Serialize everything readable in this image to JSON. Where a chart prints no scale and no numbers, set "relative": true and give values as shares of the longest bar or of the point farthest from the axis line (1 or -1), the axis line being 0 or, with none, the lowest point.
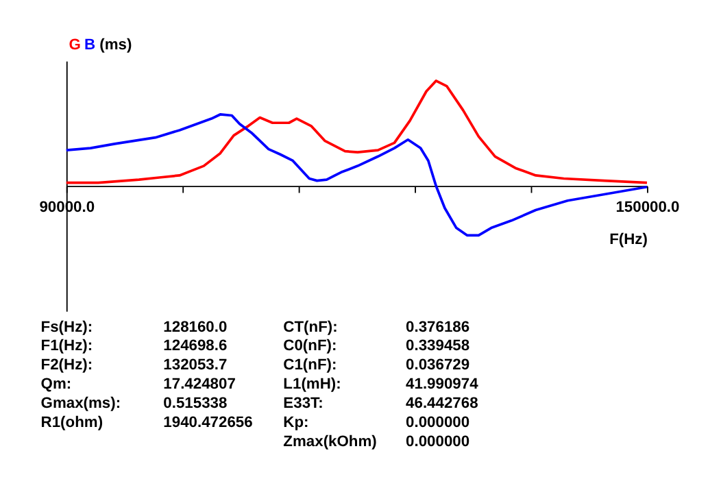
{
  "chart_data": {
    "type": "line",
    "relative": true,
    "ylabel": "(ms)",
    "xlabel": "F(Hz)",
    "xlim": [
      90000,
      150000
    ],
    "xticks": [
      {
        "value": 90000,
        "label": "90000.0"
      },
      {
        "value": 102000,
        "label": null
      },
      {
        "value": 114000,
        "label": null
      },
      {
        "value": 126000,
        "label": null
      },
      {
        "value": 138000,
        "label": null
      },
      {
        "value": 150000,
        "label": "150000.0"
      }
    ],
    "grid": false,
    "marker": "none",
    "line_style": "solid",
    "series": [
      {
        "name": "G",
        "color": "#ff0000",
        "x": [
          90000,
          93300,
          97500,
          99600,
          101700,
          104200,
          105900,
          107300,
          108800,
          110000,
          111300,
          113000,
          113800,
          115300,
          116700,
          118800,
          120100,
          122200,
          123900,
          125500,
          127200,
          128200,
          129300,
          131000,
          132600,
          134300,
          136400,
          138500,
          141400,
          145600,
          150000
        ],
        "values": [
          0.03,
          0.03,
          0.06,
          0.08,
          0.1,
          0.19,
          0.31,
          0.48,
          0.57,
          0.65,
          0.6,
          0.6,
          0.64,
          0.57,
          0.43,
          0.33,
          0.32,
          0.34,
          0.41,
          0.62,
          0.9,
          1.0,
          0.95,
          0.72,
          0.47,
          0.28,
          0.17,
          0.1,
          0.07,
          0.05,
          0.03
        ]
      },
      {
        "name": "B",
        "color": "#0000ff",
        "x": [
          90000,
          92500,
          95000,
          99200,
          101700,
          105000,
          105900,
          107100,
          107900,
          109200,
          110900,
          112100,
          113400,
          115100,
          115900,
          116900,
          118400,
          120100,
          122200,
          123900,
          125300,
          126600,
          127400,
          128200,
          129100,
          130300,
          131400,
          132600,
          133900,
          136000,
          138500,
          141800,
          145600,
          150000
        ],
        "values": [
          0.34,
          0.36,
          0.4,
          0.46,
          0.53,
          0.64,
          0.68,
          0.67,
          0.59,
          0.5,
          0.35,
          0.3,
          0.24,
          0.07,
          0.05,
          0.06,
          0.13,
          0.19,
          0.28,
          0.36,
          0.44,
          0.36,
          0.24,
          0.0,
          -0.21,
          -0.4,
          -0.47,
          -0.47,
          -0.4,
          -0.33,
          -0.23,
          -0.14,
          -0.08,
          -0.01
        ]
      }
    ],
    "annotations": [
      "Fs(Hz):",
      "128160.0",
      "F1(Hz):",
      "124698.6",
      "F2(Hz):",
      "132053.7",
      "Qm:",
      "17.424807",
      "Gmax(ms):",
      "0.515338",
      "R1(ohm)",
      "1940.472656",
      "CT(nF):",
      "0.376186",
      "C0(nF):",
      "0.339458",
      "C1(nF):",
      "0.036729",
      "L1(mH):",
      "41.990974",
      "E33T:",
      "46.442768",
      "Kp:",
      "0.000000",
      "Zmax(kOhm)",
      "0.000000"
    ]
  }
}
